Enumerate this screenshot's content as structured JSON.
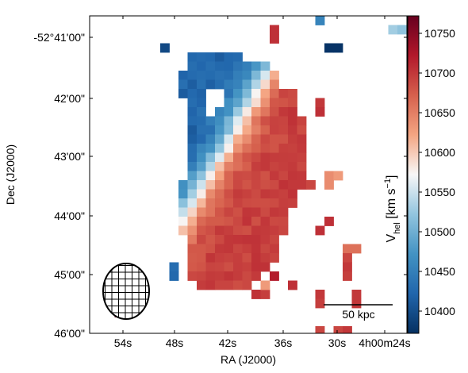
{
  "chart_data": {
    "type": "heatmap",
    "xlabel": "RA (J2000)",
    "ylabel": "Dec (J2000)",
    "x_ticks": [
      "54s",
      "48s",
      "42s",
      "36s",
      "30s",
      "4h00m24s"
    ],
    "y_ticks": [
      "-52°41'00\"",
      "42'00\"",
      "43'00\"",
      "44'00\"",
      "45'00\"",
      "46'00\""
    ],
    "colorbar": {
      "label": "V_hel [km s^-1]",
      "label_main": "V",
      "label_sub": "hel",
      "label_rest": " [km s",
      "label_sup": "−1",
      "label_end": "]",
      "ticks": [
        10400,
        10450,
        10500,
        10550,
        10600,
        10650,
        10700,
        10750
      ],
      "tick_labels": [
        "10400",
        "10450",
        "10500",
        "10550",
        "10600",
        "10650",
        "10700",
        "10750"
      ],
      "vmin": 10372,
      "vmax": 10772,
      "colors": [
        "#053061",
        "#2166ac",
        "#4393c3",
        "#92c5de",
        "#f7f7f7",
        "#f4a582",
        "#d6604d",
        "#b2182b",
        "#67001f"
      ]
    },
    "scale_bar_label": "50 kpc",
    "beam": "hatched ellipse",
    "grid": "off"
  }
}
